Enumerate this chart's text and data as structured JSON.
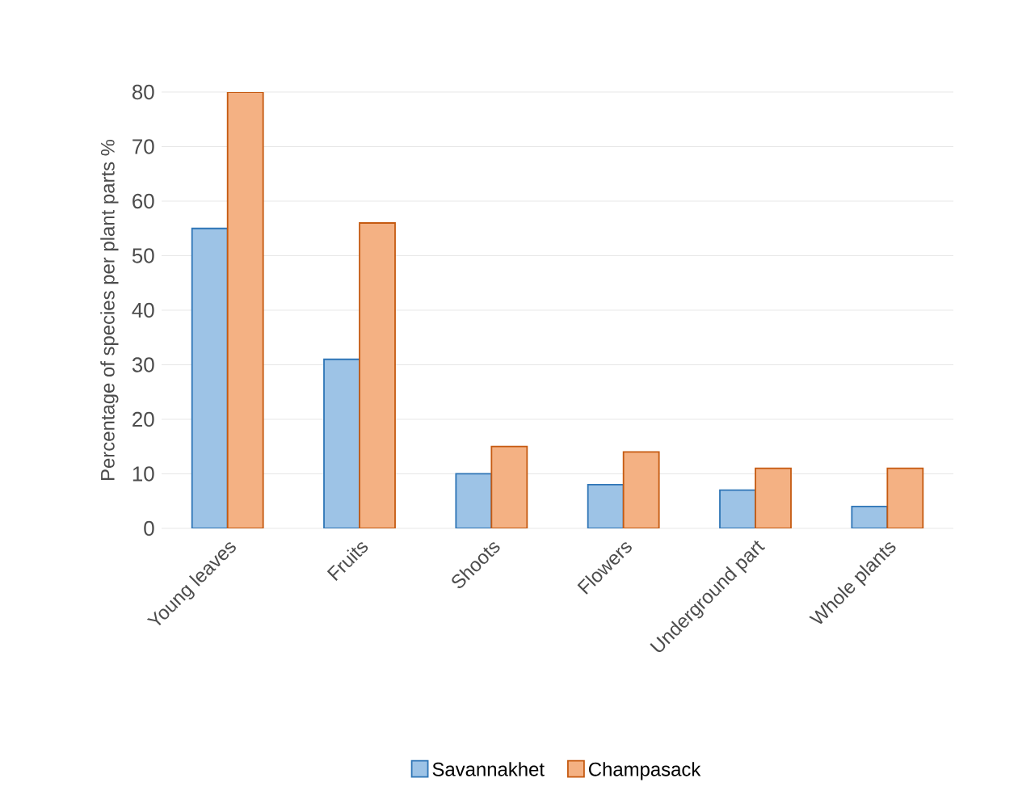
{
  "chart_data": {
    "type": "bar",
    "ylabel": "Percentage of species per plant parts %",
    "categories": [
      "Young leaves",
      "Fruits",
      "Shoots",
      "Flowers",
      "Underground part",
      "Whole plants"
    ],
    "series": [
      {
        "name": "Savannakhet",
        "color": "#9dc3e6",
        "values": [
          55,
          31,
          10,
          8,
          7,
          4
        ]
      },
      {
        "name": "Champasack",
        "color": "#f4b183",
        "values": [
          80,
          56,
          15,
          14,
          11,
          11
        ]
      }
    ],
    "ylim": [
      0,
      80
    ],
    "yticks": [
      0,
      10,
      20,
      30,
      40,
      50,
      60,
      70,
      80
    ],
    "grid": "y",
    "legend": "bottom"
  }
}
